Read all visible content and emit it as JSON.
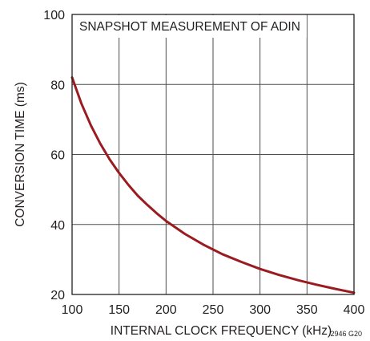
{
  "chart_data": {
    "type": "line",
    "title": "SNAPSHOT MEASUREMENT OF ADIN",
    "xlabel": "INTERNAL CLOCK FREQUENCY (kHz)",
    "ylabel": "CONVERSION TIME (ms)",
    "xlim": [
      100,
      400
    ],
    "ylim": [
      20,
      100
    ],
    "xticks": [
      "100",
      "150",
      "200",
      "250",
      "300",
      "350",
      "400"
    ],
    "yticks": [
      "20",
      "40",
      "60",
      "80",
      "100"
    ],
    "grid": true,
    "figure_code": "2946 G20",
    "series": [
      {
        "color": "#9b1c20",
        "x": [
          100,
          110,
          120,
          130,
          140,
          150,
          160,
          170,
          180,
          190,
          200,
          220,
          240,
          260,
          280,
          300,
          320,
          340,
          360,
          380,
          400
        ],
        "y": [
          82,
          74.5,
          68.3,
          63.1,
          58.6,
          54.7,
          51.3,
          48.2,
          45.6,
          43.2,
          41,
          37.3,
          34.2,
          31.5,
          29.3,
          27.3,
          25.6,
          24.1,
          22.8,
          21.6,
          20.5
        ]
      }
    ]
  }
}
